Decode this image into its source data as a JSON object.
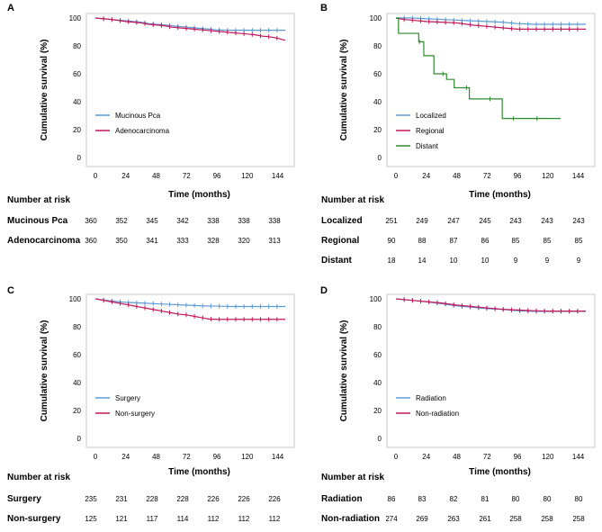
{
  "chart_data": [
    {
      "type": "line",
      "panel": "A",
      "ylabel": "Cumulative survival (%)",
      "xlabel": "Time (months)",
      "x_ticks": [
        "0",
        "24",
        "48",
        "72",
        "96",
        "120",
        "144"
      ],
      "y_ticks": [
        "0",
        "20",
        "40",
        "60",
        "80",
        "100"
      ],
      "xlim": [
        0,
        150
      ],
      "ylim": [
        0,
        100
      ],
      "series": [
        {
          "name": "Mucinous Pca",
          "color": "#5B9BD5",
          "x": [
            0,
            6,
            12,
            18,
            24,
            30,
            36,
            42,
            48,
            54,
            60,
            66,
            72,
            78,
            84,
            90,
            96,
            102,
            108,
            114,
            120,
            126,
            132,
            138,
            144,
            150
          ],
          "y": [
            100,
            99.5,
            99,
            98.5,
            98,
            97.5,
            97,
            96,
            95.5,
            95,
            94.5,
            94,
            93.5,
            93,
            92.5,
            92,
            91.5,
            91.3,
            91.2,
            91.2,
            91.2,
            91.2,
            91.2,
            91.2,
            91.2,
            91.2
          ]
        },
        {
          "name": "Adenocarcinoma",
          "color": "#C0185A",
          "x": [
            0,
            6,
            12,
            18,
            24,
            30,
            36,
            42,
            48,
            54,
            60,
            66,
            72,
            78,
            84,
            90,
            96,
            102,
            108,
            114,
            120,
            126,
            132,
            138,
            144,
            150
          ],
          "y": [
            100,
            99.5,
            99,
            98.3,
            97.5,
            97,
            96.5,
            95.5,
            95,
            94.5,
            93.5,
            93,
            92.5,
            92,
            91.5,
            91,
            90.5,
            90,
            89.5,
            89,
            88.5,
            88,
            87,
            86.5,
            85.5,
            84
          ]
        }
      ],
      "risk_table": {
        "title": "Number at risk",
        "rows": [
          {
            "label": "Mucinous Pca",
            "values": [
              "360",
              "352",
              "345",
              "342",
              "338",
              "338",
              "338"
            ]
          },
          {
            "label": "Adenocarcinoma",
            "values": [
              "360",
              "350",
              "341",
              "333",
              "328",
              "320",
              "313"
            ]
          }
        ]
      }
    },
    {
      "type": "line",
      "panel": "B",
      "ylabel": "Cumulative survival (%)",
      "xlabel": "Time (months)",
      "x_ticks": [
        "0",
        "24",
        "48",
        "72",
        "96",
        "120",
        "144"
      ],
      "y_ticks": [
        "0",
        "20",
        "40",
        "60",
        "80",
        "100"
      ],
      "xlim": [
        0,
        150
      ],
      "ylim": [
        0,
        100
      ],
      "series": [
        {
          "name": "Localized",
          "color": "#5B9BD5",
          "x": [
            0,
            12,
            24,
            36,
            48,
            60,
            72,
            84,
            96,
            108,
            120,
            132,
            144,
            150
          ],
          "y": [
            100,
            100,
            99.5,
            99,
            98.5,
            98,
            97.5,
            97,
            96,
            95.5,
            95.5,
            95.5,
            95.5,
            95.5
          ]
        },
        {
          "name": "Regional",
          "color": "#C0185A",
          "x": [
            0,
            6,
            12,
            24,
            36,
            48,
            60,
            72,
            84,
            96,
            108,
            120,
            132,
            144,
            150
          ],
          "y": [
            100,
            99,
            98.5,
            97.5,
            97,
            96.5,
            95,
            94,
            93,
            92,
            92,
            92,
            92,
            92,
            92
          ]
        },
        {
          "name": "Distant",
          "color": "#2E8B2E",
          "step": true,
          "x": [
            0,
            2,
            6,
            18,
            22,
            30,
            40,
            46,
            58,
            84,
            130
          ],
          "y": [
            100,
            89,
            89,
            83,
            73,
            60,
            56,
            50,
            42,
            28,
            28
          ]
        }
      ],
      "risk_table": {
        "title": "Number at risk",
        "rows": [
          {
            "label": "Localized",
            "values": [
              "251",
              "249",
              "247",
              "245",
              "243",
              "243",
              "243"
            ]
          },
          {
            "label": "Regional",
            "values": [
              "90",
              "88",
              "87",
              "86",
              "85",
              "85",
              "85"
            ]
          },
          {
            "label": "Distant",
            "values": [
              "18",
              "14",
              "10",
              "10",
              "9",
              "9",
              "9"
            ]
          }
        ]
      }
    },
    {
      "type": "line",
      "panel": "C",
      "ylabel": "Cumulative survival (%)",
      "xlabel": "Time (months)",
      "x_ticks": [
        "0",
        "24",
        "48",
        "72",
        "96",
        "120",
        "144"
      ],
      "y_ticks": [
        "0",
        "20",
        "40",
        "60",
        "80",
        "100"
      ],
      "xlim": [
        0,
        150
      ],
      "ylim": [
        0,
        100
      ],
      "series": [
        {
          "name": "Surgery",
          "color": "#5B9BD5",
          "x": [
            0,
            12,
            24,
            36,
            48,
            60,
            72,
            84,
            96,
            108,
            120,
            132,
            144,
            150
          ],
          "y": [
            100,
            98.5,
            97.5,
            97,
            96.5,
            96,
            95.5,
            95,
            94.8,
            94.5,
            94.5,
            94.5,
            94.5,
            94.5
          ]
        },
        {
          "name": "Non-surgery",
          "color": "#C0185A",
          "x": [
            0,
            6,
            12,
            18,
            24,
            30,
            36,
            42,
            48,
            54,
            60,
            66,
            72,
            78,
            84,
            90,
            96,
            108,
            120,
            132,
            144,
            150
          ],
          "y": [
            100,
            99,
            98,
            97,
            96,
            95,
            94,
            93,
            92,
            91,
            90,
            89,
            88.5,
            87.5,
            86.5,
            85.5,
            85.3,
            85.3,
            85.3,
            85.3,
            85.3,
            85.3
          ]
        }
      ],
      "risk_table": {
        "title": "Number at risk",
        "rows": [
          {
            "label": "Surgery",
            "values": [
              "235",
              "231",
              "228",
              "228",
              "226",
              "226",
              "226"
            ]
          },
          {
            "label": "Non-surgery",
            "values": [
              "125",
              "121",
              "117",
              "114",
              "112",
              "112",
              "112"
            ]
          }
        ]
      }
    },
    {
      "type": "line",
      "panel": "D",
      "ylabel": "Cumulative survival (%)",
      "xlabel": "Time (months)",
      "x_ticks": [
        "0",
        "24",
        "48",
        "72",
        "96",
        "120",
        "144"
      ],
      "y_ticks": [
        "0",
        "20",
        "40",
        "60",
        "80",
        "100"
      ],
      "xlim": [
        0,
        150
      ],
      "ylim": [
        0,
        100
      ],
      "series": [
        {
          "name": "Radiation",
          "color": "#5B9BD5",
          "x": [
            0,
            12,
            24,
            36,
            48,
            60,
            72,
            84,
            96,
            108,
            120,
            132,
            144,
            150
          ],
          "y": [
            100,
            99,
            98,
            96.5,
            95,
            94,
            93,
            92.5,
            91.5,
            91,
            91,
            91,
            91,
            91
          ]
        },
        {
          "name": "Non-radiation",
          "color": "#C0185A",
          "x": [
            0,
            12,
            24,
            36,
            48,
            60,
            72,
            84,
            96,
            108,
            120,
            132,
            144,
            150
          ],
          "y": [
            100,
            99,
            98,
            97,
            95.5,
            94.5,
            93.5,
            92.5,
            92,
            91.5,
            91.2,
            91.2,
            91.2,
            91.2
          ]
        }
      ],
      "risk_table": {
        "title": "Number at risk",
        "rows": [
          {
            "label": "Radiation",
            "values": [
              "86",
              "83",
              "82",
              "81",
              "80",
              "80",
              "80"
            ]
          },
          {
            "label": "Non-radiation",
            "values": [
              "274",
              "269",
              "263",
              "261",
              "258",
              "258",
              "258"
            ]
          }
        ]
      }
    }
  ]
}
